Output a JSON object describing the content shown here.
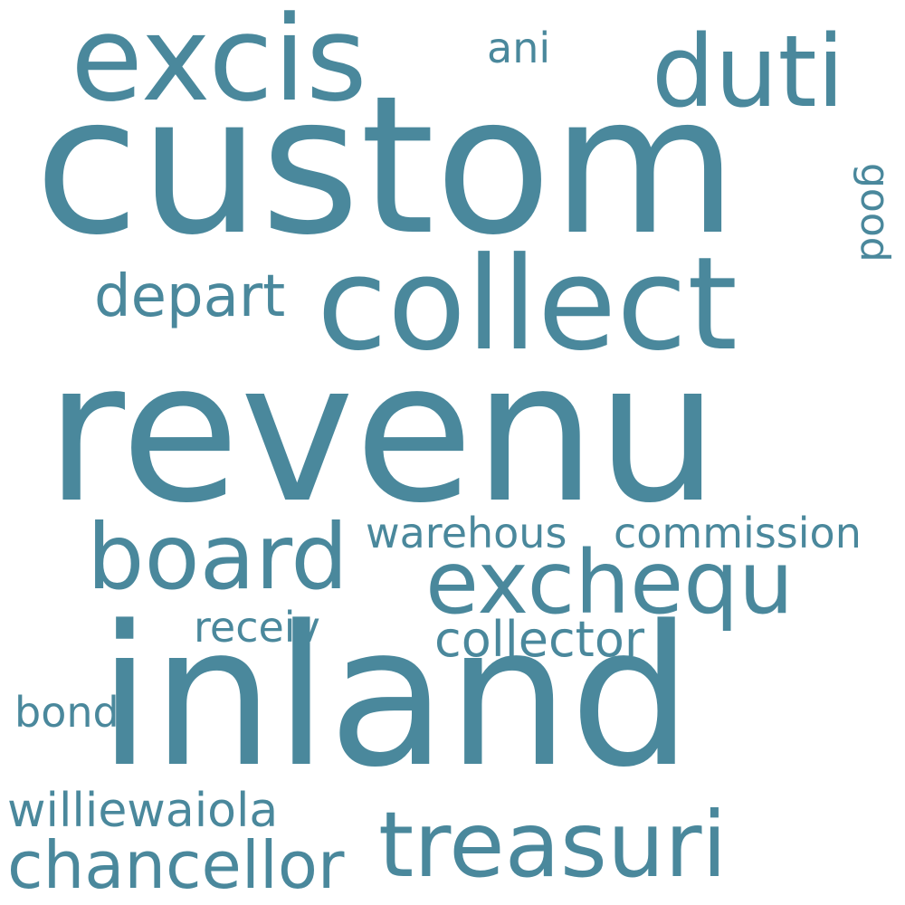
{
  "color": "#4a889c",
  "words": {
    "custom": "custom",
    "revenu": "revenu",
    "inland": "inland",
    "collect": "collect",
    "excis": "excis",
    "duti": "duti",
    "exchequ": "exchequ",
    "board": "board",
    "treasuri": "treasuri",
    "depart": "depart",
    "commission": "commission",
    "warehous": "warehous",
    "collector": "collector",
    "receiv": "receiv",
    "bond": "bond",
    "williewaiola": "williewaiola",
    "chancellor": "chancellor",
    "ani": "ani",
    "good": "good"
  }
}
